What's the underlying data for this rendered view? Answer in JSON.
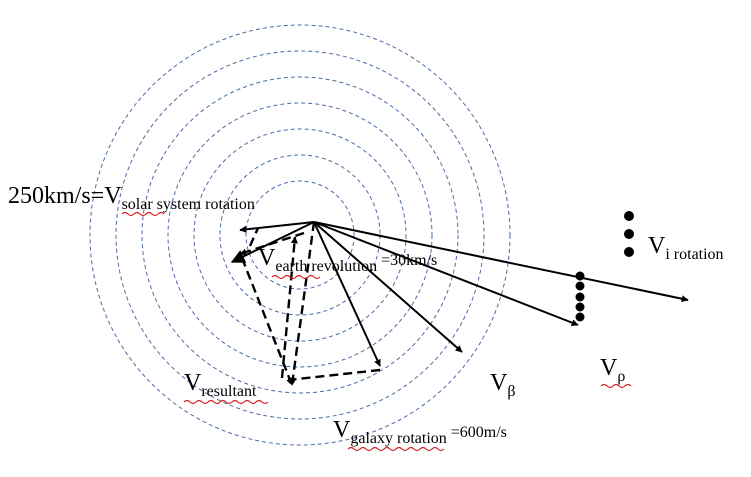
{
  "colors": {
    "orbit_stroke": "#4a6aa8",
    "arrow": "#000000",
    "spellcheck_underline": "#d42020"
  },
  "labels": {
    "solar_prefix": "250km/s=",
    "solar_main": "V",
    "solar_sub": "solar system rotation",
    "earth_main": "V",
    "earth_sub": "earth revolution",
    "earth_suffix": " =30km/s",
    "resultant_main": "V",
    "resultant_sub": "resultant",
    "beta_main": "V",
    "beta_sub": "β",
    "rho_main": "V",
    "rho_sub": "ρ",
    "galaxy_main": "V",
    "galaxy_sub": "galaxy rotation",
    "galaxy_suffix": " =600m/s",
    "irot_main": "V",
    "irot_sub": "i rotation"
  }
}
